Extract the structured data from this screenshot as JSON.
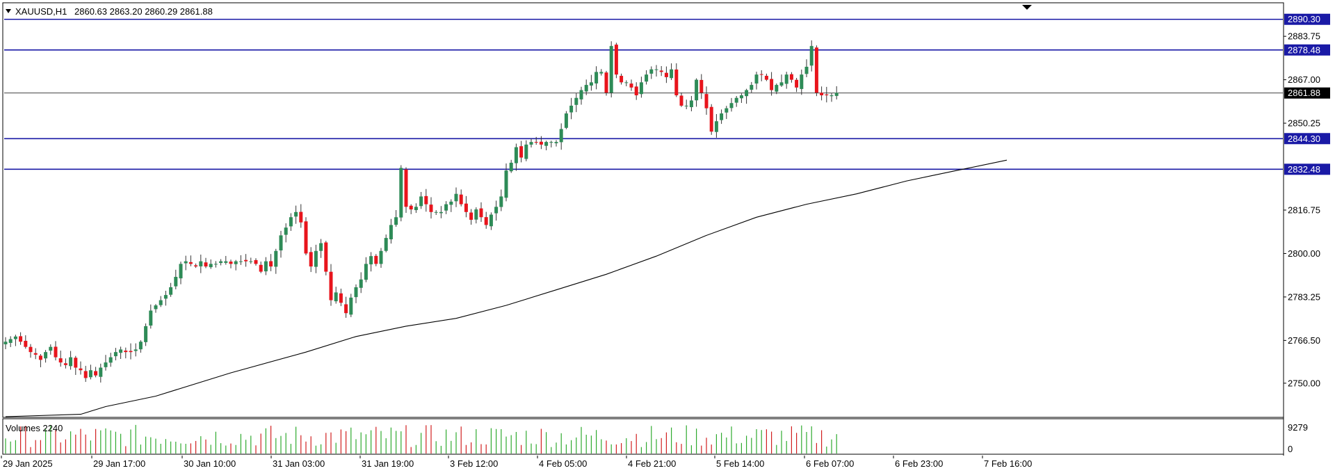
{
  "header": {
    "menu_icon": "triangle-down-icon",
    "symbol": "XAUUSD,H1",
    "ohlc": "2860.63 2863.20 2860.29 2861.88"
  },
  "colors": {
    "background": "#ffffff",
    "bull": "#2e8b57",
    "bear": "#e8141c",
    "wick": "#333333",
    "level_line": "#1a1aa6",
    "price_line": "#000000",
    "ma_line": "#000000",
    "volume_bar": "#2eaa2e",
    "volume_bar_down": "#d11f1f",
    "tag_bg": "#1a1aa6",
    "tag_text": "#ffffff",
    "current_tag_bg": "#000000"
  },
  "chart_data": {
    "type": "candlestick",
    "title": "XAUUSD,H1",
    "ylim": [
      2737.1,
      2896.4
    ],
    "y_ticks": [
      2750.0,
      2766.5,
      2783.25,
      2800.0,
      2816.75,
      2850.25,
      2867.0,
      2883.75
    ],
    "x_labels": [
      "29 Jan 2025",
      "29 Jan 17:00",
      "30 Jan 10:00",
      "31 Jan 03:00",
      "31 Jan 19:00",
      "3 Feb 12:00",
      "4 Feb 05:00",
      "4 Feb 21:00",
      "5 Feb 14:00",
      "6 Feb 07:00",
      "6 Feb 23:00",
      "7 Feb 16:00"
    ],
    "levels": [
      2890.3,
      2878.48,
      2844.3,
      2832.48
    ],
    "current_price": 2861.88,
    "last_ohlc": {
      "open": 2860.63,
      "high": 2863.2,
      "low": 2860.29,
      "close": 2861.88
    },
    "moving_average": {
      "x_index": [
        0,
        15,
        20,
        30,
        45,
        60,
        70,
        80,
        90,
        100,
        110,
        120,
        130,
        140,
        150,
        160,
        170,
        180,
        185,
        190,
        200
      ],
      "values": [
        2730,
        2738,
        2741,
        2745,
        2754,
        2762,
        2768,
        2772,
        2775,
        2780,
        2786,
        2792,
        2799,
        2807,
        2814,
        2819,
        2823,
        2828,
        2830,
        2832,
        2836
      ]
    },
    "candle_closes": [
      2766,
      2767,
      2768,
      2766,
      2764,
      2762,
      2761,
      2759,
      2762,
      2764,
      2760,
      2758,
      2757,
      2760,
      2756,
      2755,
      2752,
      2755,
      2753,
      2756,
      2758,
      2760,
      2762,
      2763,
      2762,
      2762,
      2763,
      2766,
      2772,
      2778,
      2780,
      2782,
      2784,
      2787,
      2791,
      2796,
      2797,
      2796,
      2795,
      2797,
      2795,
      2796,
      2796,
      2797,
      2797,
      2796,
      2797,
      2797,
      2797,
      2797,
      2796,
      2793,
      2797,
      2795,
      2801,
      2807,
      2810,
      2814,
      2816,
      2812,
      2800,
      2795,
      2801,
      2804,
      2793,
      2782,
      2785,
      2781,
      2777,
      2783,
      2787,
      2790,
      2796,
      2799,
      2796,
      2801,
      2806,
      2811,
      2814,
      2833,
      2818,
      2817,
      2818,
      2822,
      2819,
      2816,
      2816,
      2816,
      2819,
      2820,
      2823,
      2819,
      2816,
      2813,
      2817,
      2814,
      2811,
      2815,
      2818,
      2822,
      2832,
      2835,
      2841,
      2837,
      2842,
      2843,
      2843,
      2842,
      2843,
      2843,
      2843,
      2848,
      2854,
      2857,
      2860,
      2863,
      2865,
      2866,
      2870,
      2870,
      2862,
      2880,
      2869,
      2866,
      2866,
      2864,
      2861,
      2866,
      2869,
      2871,
      2871,
      2870,
      2868,
      2871,
      2861,
      2857,
      2857,
      2859,
      2867,
      2862,
      2856,
      2847,
      2851,
      2854,
      2856,
      2858,
      2860,
      2861,
      2863,
      2865,
      2869,
      2869,
      2867,
      2863,
      2865,
      2866,
      2869,
      2867,
      2864,
      2869,
      2872,
      2880,
      2862,
      2861,
      2861,
      2861,
      2862
    ]
  },
  "volume": {
    "label": "Volumes 2240",
    "axis_max_label": "9279",
    "axis_zero_label": "0",
    "max": 9279
  }
}
